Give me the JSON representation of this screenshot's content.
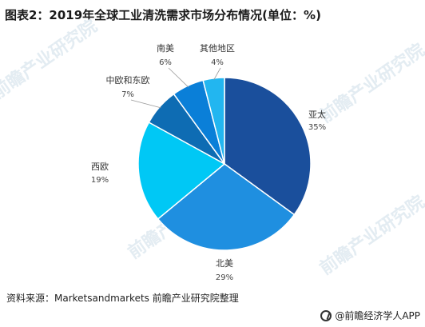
{
  "header": {
    "title": "图表2：2019年全球工业清洗需求市场分布情况(单位：%)"
  },
  "footer": {
    "source": "资料来源：Marketsandmarkets 前瞻产业研究院整理",
    "brand": "@前瞻经济学人APP"
  },
  "watermark": {
    "text": "前瞻产业研究院"
  },
  "chart_data": {
    "type": "pie",
    "title": "图表2：2019年全球工业清洗需求市场分布情况(单位：%)",
    "unit": "%",
    "slices": [
      {
        "name": "亚太",
        "value": 35,
        "label": "35%",
        "color": "#1a4f9c"
      },
      {
        "name": "北美",
        "value": 29,
        "label": "29%",
        "color": "#1f8fe0"
      },
      {
        "name": "西欧",
        "value": 19,
        "label": "19%",
        "color": "#00c8f5"
      },
      {
        "name": "中欧和东欧",
        "value": 7,
        "label": "7%",
        "color": "#0e6cb3"
      },
      {
        "name": "南美",
        "value": 6,
        "label": "6%",
        "color": "#0a7fd8"
      },
      {
        "name": "其他地区",
        "value": 4,
        "label": "4%",
        "color": "#22b6f0"
      }
    ]
  }
}
